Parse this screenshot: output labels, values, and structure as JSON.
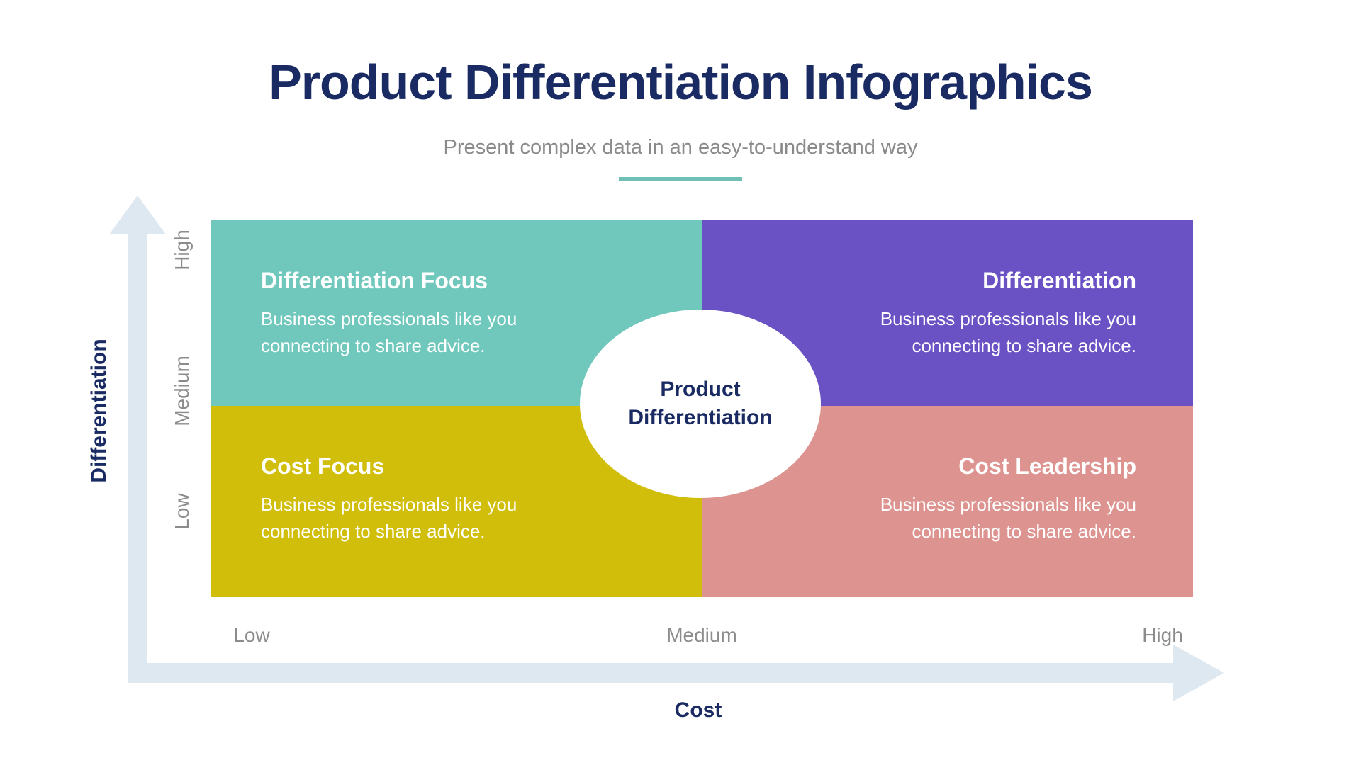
{
  "header": {
    "title": "Product Differentiation Infographics",
    "subtitle": "Present complex data in an easy-to-understand way"
  },
  "axes": {
    "y": {
      "title": "Differentiation",
      "ticks": [
        "High",
        "Medium",
        "Low"
      ]
    },
    "x": {
      "title": "Cost",
      "ticks": [
        "Low",
        "Medium",
        "High"
      ]
    }
  },
  "center": {
    "label": "Product Differentiation"
  },
  "quadrants": [
    {
      "position": "top-left",
      "name": "Differentiation Focus",
      "description": "Business professionals like you connecting to share advice.",
      "color": "#70C8BD"
    },
    {
      "position": "top-right",
      "name": "Differentiation",
      "description": "Business professionals like you connecting to share advice.",
      "color": "#6A52C4"
    },
    {
      "position": "bottom-left",
      "name": "Cost Focus",
      "description": "Business professionals like you connecting to share advice.",
      "color": "#D1BE0A"
    },
    {
      "position": "bottom-right",
      "name": "Cost Leadership",
      "description": "Business professionals like you connecting to share advice.",
      "color": "#DD9490"
    }
  ],
  "colors": {
    "title_navy": "#1A2B63",
    "subtitle_gray": "#8A8A8A",
    "tick_gray": "#8C8C8C",
    "divider_teal": "#6FBFB5",
    "axis_arrow": "#DEE8F1",
    "quadrant_teal": "#70C8BD",
    "quadrant_purple": "#6A52C4",
    "quadrant_yellow": "#D1BE0A",
    "quadrant_salmon": "#DD9490",
    "center_ellipse": "#FFFFFF"
  },
  "chart_data": {
    "type": "quadrant-matrix",
    "title": "Product Differentiation Infographics",
    "subtitle": "Present complex data in an easy-to-understand way",
    "xlabel": "Cost",
    "ylabel": "Differentiation",
    "x_ticks": [
      "Low",
      "Medium",
      "High"
    ],
    "y_ticks": [
      "Low",
      "Medium",
      "High"
    ],
    "center_label": "Product Differentiation",
    "legend": "none",
    "grid": false,
    "quadrants": [
      {
        "x": "Low",
        "y": "High",
        "label": "Differentiation Focus",
        "text": "Business professionals like you connecting to share advice.",
        "color": "#70C8BD"
      },
      {
        "x": "High",
        "y": "High",
        "label": "Differentiation",
        "text": "Business professionals like you connecting to share advice.",
        "color": "#6A52C4"
      },
      {
        "x": "Low",
        "y": "Low",
        "label": "Cost Focus",
        "text": "Business professionals like you connecting to share advice.",
        "color": "#D1BE0A"
      },
      {
        "x": "High",
        "y": "Low",
        "label": "Cost Leadership",
        "text": "Business professionals like you connecting to share advice.",
        "color": "#DD9490"
      }
    ]
  }
}
